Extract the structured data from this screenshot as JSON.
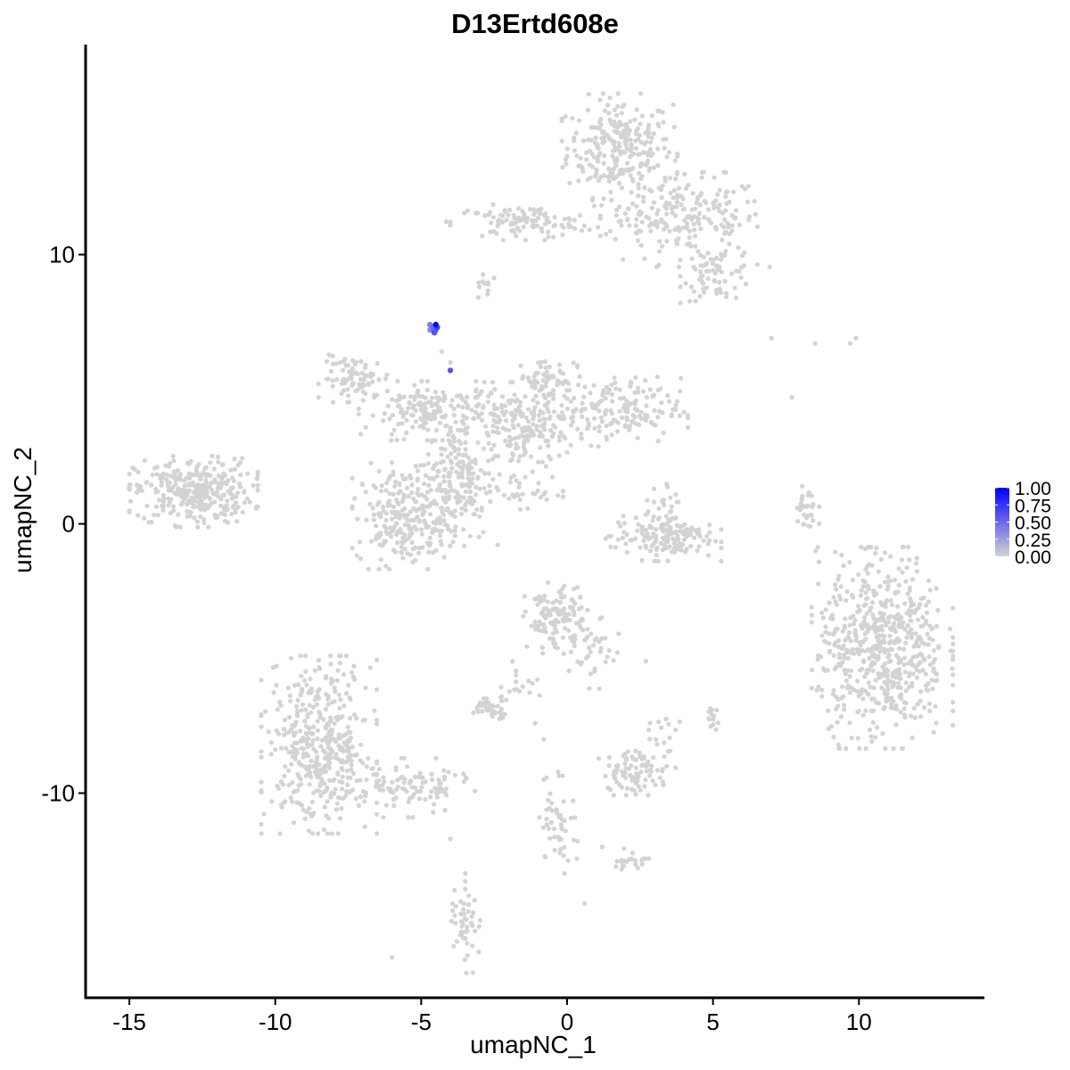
{
  "chart_data": {
    "type": "scatter",
    "title": "D13Ertd608e",
    "xlabel": "umapNC_1",
    "ylabel": "umapNC_2",
    "xlim": [
      -16.5,
      14.3
    ],
    "ylim": [
      -17.6,
      17.8
    ],
    "x_ticks": [
      -15,
      -10,
      -5,
      0,
      5,
      10
    ],
    "x_tick_labels": [
      "-15",
      "-10",
      "-5",
      "0",
      "5",
      "10"
    ],
    "y_ticks": [
      -10,
      0,
      10
    ],
    "y_tick_labels": [
      "-10",
      "0",
      "10"
    ],
    "grid": false,
    "point_color_low": "#d3d3d3",
    "point_color_high": "#0000ff",
    "color_scale": {
      "min": 0,
      "max": 1,
      "ticks": [
        1.0,
        0.75,
        0.5,
        0.25,
        0.0
      ],
      "tick_labels": [
        "1.00",
        "0.75",
        "0.50",
        "0.25",
        "0.00"
      ],
      "legend_position": "right"
    },
    "clusters": [
      {
        "cx": 1.8,
        "cy": 14.0,
        "sx": 0.9,
        "sy": 0.9,
        "n": 260,
        "value": 0
      },
      {
        "cx": 4.3,
        "cy": 11.3,
        "sx": 1.2,
        "sy": 0.8,
        "n": 180,
        "value": 0
      },
      {
        "cx": 5.2,
        "cy": 9.3,
        "sx": 0.6,
        "sy": 0.5,
        "n": 70,
        "value": 0
      },
      {
        "cx": -1.5,
        "cy": 11.2,
        "sx": 1.2,
        "sy": 0.3,
        "n": 110,
        "value": 0
      },
      {
        "cx": 2.6,
        "cy": 11.4,
        "sx": 0.9,
        "sy": 0.4,
        "n": 40,
        "value": 0
      },
      {
        "cx": -2.8,
        "cy": 8.9,
        "sx": 0.2,
        "sy": 0.3,
        "n": 12,
        "value": 0
      },
      {
        "cx": -12.8,
        "cy": 1.2,
        "sx": 1.0,
        "sy": 0.6,
        "n": 320,
        "value": 0
      },
      {
        "cx": -7.2,
        "cy": 5.4,
        "sx": 0.6,
        "sy": 0.4,
        "n": 80,
        "value": 0
      },
      {
        "cx": -4.5,
        "cy": 4.2,
        "sx": 1.2,
        "sy": 0.5,
        "n": 180,
        "value": 0
      },
      {
        "cx": -1.5,
        "cy": 3.5,
        "sx": 0.9,
        "sy": 0.8,
        "n": 180,
        "value": 0
      },
      {
        "cx": -0.7,
        "cy": 5.4,
        "sx": 0.5,
        "sy": 0.4,
        "n": 60,
        "value": 0
      },
      {
        "cx": 1.5,
        "cy": 4.2,
        "sx": 1.2,
        "sy": 0.6,
        "n": 180,
        "value": 0
      },
      {
        "cx": -3.7,
        "cy": 1.6,
        "sx": 0.6,
        "sy": 1.1,
        "n": 180,
        "value": 0
      },
      {
        "cx": -5.6,
        "cy": 0.3,
        "sx": 0.8,
        "sy": 0.9,
        "n": 240,
        "value": 0
      },
      {
        "cx": -1.8,
        "cy": 1.2,
        "sx": 0.8,
        "sy": 0.3,
        "n": 30,
        "value": 0
      },
      {
        "cx": 3.3,
        "cy": -0.5,
        "sx": 0.9,
        "sy": 0.4,
        "n": 150,
        "value": 0
      },
      {
        "cx": 3.3,
        "cy": 0.6,
        "sx": 0.3,
        "sy": 0.4,
        "n": 30,
        "value": 0
      },
      {
        "cx": 10.8,
        "cy": -4.6,
        "sx": 1.1,
        "sy": 1.7,
        "n": 600,
        "value": 0
      },
      {
        "cx": 8.2,
        "cy": 0.4,
        "sx": 0.2,
        "sy": 0.6,
        "n": 30,
        "value": 0
      },
      {
        "cx": -8.5,
        "cy": -8.2,
        "sx": 0.9,
        "sy": 1.5,
        "n": 420,
        "value": 0
      },
      {
        "cx": -5.8,
        "cy": -9.8,
        "sx": 1.2,
        "sy": 0.5,
        "n": 100,
        "value": 0
      },
      {
        "cx": -0.4,
        "cy": -3.5,
        "sx": 0.5,
        "sy": 0.6,
        "n": 120,
        "value": 0
      },
      {
        "cx": 0.9,
        "cy": -4.8,
        "sx": 0.4,
        "sy": 0.6,
        "n": 40,
        "value": 0
      },
      {
        "cx": -2.6,
        "cy": -6.8,
        "sx": 0.35,
        "sy": 0.2,
        "n": 45,
        "value": 0
      },
      {
        "cx": -1.6,
        "cy": -5.8,
        "sx": 0.3,
        "sy": 0.4,
        "n": 15,
        "value": 0
      },
      {
        "cx": 2.4,
        "cy": -9.2,
        "sx": 0.6,
        "sy": 0.4,
        "n": 90,
        "value": 0
      },
      {
        "cx": 3.2,
        "cy": -7.9,
        "sx": 0.3,
        "sy": 0.4,
        "n": 15,
        "value": 0
      },
      {
        "cx": 5.0,
        "cy": -7.2,
        "sx": 0.15,
        "sy": 0.2,
        "n": 14,
        "value": 0
      },
      {
        "cx": -0.3,
        "cy": -11.0,
        "sx": 0.3,
        "sy": 0.9,
        "n": 50,
        "value": 0
      },
      {
        "cx": 2.2,
        "cy": -12.5,
        "sx": 0.3,
        "sy": 0.2,
        "n": 22,
        "value": 0
      },
      {
        "cx": -3.5,
        "cy": -14.7,
        "sx": 0.25,
        "sy": 0.9,
        "n": 50,
        "value": 0
      },
      {
        "cx": -4.3,
        "cy": -9.8,
        "sx": 0.3,
        "sy": 0.3,
        "n": 12,
        "value": 0
      }
    ],
    "points": [
      {
        "x": -4.6,
        "y": 7.3,
        "value": 0.5
      },
      {
        "x": -4.7,
        "y": 7.4,
        "value": 0.4
      },
      {
        "x": -4.5,
        "y": 7.2,
        "value": 0.55
      },
      {
        "x": -4.6,
        "y": 7.2,
        "value": 0.45
      },
      {
        "x": -4.5,
        "y": 7.4,
        "value": 1.0
      },
      {
        "x": -4.55,
        "y": 7.1,
        "value": 0.6
      },
      {
        "x": -4.45,
        "y": 7.3,
        "value": 0.7
      },
      {
        "x": -4.65,
        "y": 7.25,
        "value": 0.35
      },
      {
        "x": -4.0,
        "y": 5.7,
        "value": 0.6
      },
      {
        "x": -4.7,
        "y": 7.2,
        "value": 0.3
      },
      {
        "x": -4.0,
        "y": 6.0,
        "value": 0
      },
      {
        "x": -4.3,
        "y": 6.4,
        "value": 0
      },
      {
        "x": -6.0,
        "y": -16.1,
        "value": 0
      },
      {
        "x": 0.6,
        "y": -14.1,
        "value": 0
      },
      {
        "x": 7.0,
        "y": 6.9,
        "value": 0
      },
      {
        "x": 7.7,
        "y": 4.7,
        "value": 0
      },
      {
        "x": 8.5,
        "y": 6.7,
        "value": 0
      },
      {
        "x": 9.7,
        "y": 6.7,
        "value": 0
      },
      {
        "x": 9.9,
        "y": 6.9,
        "value": 0
      },
      {
        "x": 2.7,
        "y": -5.1,
        "value": 0
      },
      {
        "x": -1.1,
        "y": -7.4,
        "value": 0
      },
      {
        "x": -0.8,
        "y": -8.0,
        "value": 0
      },
      {
        "x": -4.0,
        "y": -11.7,
        "value": 0
      },
      {
        "x": -0.8,
        "y": -9.5,
        "value": 0
      },
      {
        "x": 1.2,
        "y": -12.0,
        "value": 0
      },
      {
        "x": 1.4,
        "y": -9.8,
        "value": 0
      }
    ]
  }
}
